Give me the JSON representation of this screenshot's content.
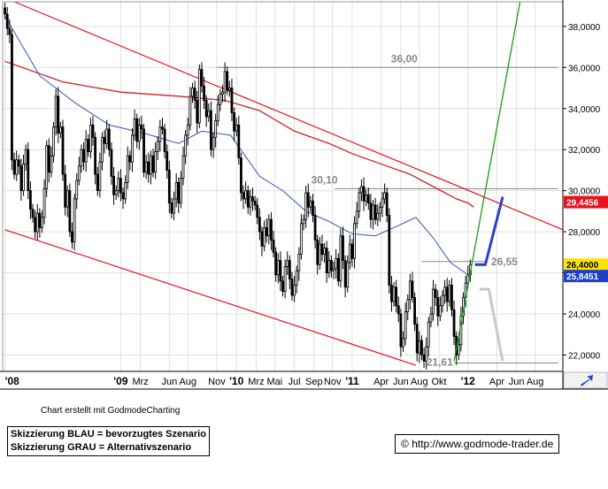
{
  "chart_data": {
    "type": "candlestick",
    "y_axis": {
      "ticks": [
        "38,0000",
        "36,0000",
        "34,0000",
        "32,0000",
        "30,0000",
        "28,0000",
        "26,0000",
        "24,0000",
        "22,0000"
      ],
      "tick_values": [
        38,
        36,
        34,
        32,
        30,
        28,
        26,
        24,
        22
      ],
      "range": [
        21.2,
        39.2
      ],
      "side": "right"
    },
    "x_axis": {
      "labels": [
        "'08",
        "'09",
        "Mrz",
        "Jun",
        "Aug",
        "Nov",
        "'10",
        "Mrz",
        "Mai",
        "Jul",
        "Sep",
        "Nov",
        "'11",
        "Apr",
        "Jun",
        "Aug",
        "Okt",
        "'12",
        "Apr",
        "Jun",
        "Aug"
      ],
      "label_dates": [
        2008.0,
        2009.0,
        2009.17,
        2009.42,
        2009.58,
        2009.83,
        2010.0,
        2010.17,
        2010.33,
        2010.5,
        2010.67,
        2010.83,
        2011.0,
        2011.25,
        2011.42,
        2011.58,
        2011.75,
        2012.0,
        2012.25,
        2012.42,
        2012.58
      ],
      "range": [
        2007.98,
        2012.82
      ]
    },
    "price_markers": [
      {
        "label": "29,4456",
        "value": 29.4456,
        "color": "#e8121b"
      },
      {
        "label": "26,4000",
        "value": 26.4,
        "color": "#ffe400"
      },
      {
        "label": "25,8451",
        "value": 25.8451,
        "color": "#1e3fc8"
      }
    ],
    "annotations": [
      {
        "text": "36,00",
        "level": 36.0,
        "from": 2009.83,
        "to": 2012.78
      },
      {
        "text": "30,10",
        "level": 30.1,
        "from": 2010.85,
        "to": 2012.78
      },
      {
        "text": "26,55",
        "level": 26.55,
        "from": 2011.6,
        "to": 2012.15
      },
      {
        "text": "21,61",
        "level": 21.61,
        "from": 2011.88,
        "to": 2012.78
      }
    ],
    "trend_channel": {
      "upper": [
        [
          2008.08,
          39.2
        ],
        [
          2012.82,
          28.1
        ]
      ],
      "lower": [
        [
          2008.0,
          28.1
        ],
        [
          2011.55,
          21.5
        ]
      ]
    },
    "support_line": [
      [
        2011.88,
        21.7
      ],
      [
        2012.45,
        39.2
      ]
    ],
    "sma_long": {
      "color": "#cc2222",
      "points": [
        [
          2008.0,
          36.3
        ],
        [
          2008.5,
          35.3
        ],
        [
          2009.0,
          34.8
        ],
        [
          2009.5,
          34.6
        ],
        [
          2009.9,
          34.4
        ],
        [
          2010.2,
          33.9
        ],
        [
          2010.5,
          32.9
        ],
        [
          2010.8,
          32.3
        ],
        [
          2011.0,
          31.8
        ],
        [
          2011.3,
          31.2
        ],
        [
          2011.5,
          30.8
        ],
        [
          2011.7,
          30.2
        ],
        [
          2011.9,
          29.6
        ],
        [
          2012.0,
          29.4
        ],
        [
          2012.05,
          29.2
        ]
      ]
    },
    "sma_short": {
      "color": "#3355bb",
      "points": [
        [
          2008.0,
          38.5
        ],
        [
          2008.3,
          35.6
        ],
        [
          2008.6,
          34.3
        ],
        [
          2008.9,
          33.2
        ],
        [
          2009.2,
          32.8
        ],
        [
          2009.5,
          32.3
        ],
        [
          2009.7,
          32.9
        ],
        [
          2009.95,
          32.7
        ],
        [
          2010.2,
          30.7
        ],
        [
          2010.4,
          30.0
        ],
        [
          2010.6,
          29.0
        ],
        [
          2010.8,
          28.5
        ],
        [
          2011.0,
          27.9
        ],
        [
          2011.2,
          27.8
        ],
        [
          2011.4,
          28.3
        ],
        [
          2011.55,
          28.7
        ],
        [
          2011.7,
          27.7
        ],
        [
          2011.85,
          26.5
        ],
        [
          2012.0,
          25.9
        ]
      ]
    },
    "scenario_blue": {
      "color": "#2c3fd0",
      "points": [
        [
          2012.06,
          26.4
        ],
        [
          2012.15,
          26.4
        ],
        [
          2012.3,
          29.7
        ]
      ]
    },
    "scenario_gray": {
      "color": "#c8c8c8",
      "points": [
        [
          2012.1,
          25.2
        ],
        [
          2012.18,
          25.2
        ],
        [
          2012.3,
          21.7
        ]
      ]
    },
    "candles": [
      [
        2008.0,
        38.6
      ],
      [
        2008.02,
        37.9
      ],
      [
        2008.04,
        37.6
      ],
      [
        2008.06,
        31.5
      ],
      [
        2008.08,
        30.8
      ],
      [
        2008.1,
        31.5
      ],
      [
        2008.12,
        31.2
      ],
      [
        2008.14,
        30.0
      ],
      [
        2008.16,
        31.3
      ],
      [
        2008.18,
        32.0
      ],
      [
        2008.2,
        30.0
      ],
      [
        2008.22,
        29.1
      ],
      [
        2008.24,
        28.7
      ],
      [
        2008.26,
        28.0
      ],
      [
        2008.28,
        28.9
      ],
      [
        2008.3,
        28.2
      ],
      [
        2008.32,
        28.7
      ],
      [
        2008.34,
        30.1
      ],
      [
        2008.36,
        32.2
      ],
      [
        2008.38,
        30.9
      ],
      [
        2008.4,
        31.7
      ],
      [
        2008.42,
        33.1
      ],
      [
        2008.44,
        34.6
      ],
      [
        2008.46,
        32.8
      ],
      [
        2008.48,
        33.1
      ],
      [
        2008.5,
        30.8
      ],
      [
        2008.52,
        29.2
      ],
      [
        2008.54,
        30.0
      ],
      [
        2008.56,
        28.0
      ],
      [
        2008.58,
        27.5
      ],
      [
        2008.6,
        29.6
      ],
      [
        2008.62,
        30.5
      ],
      [
        2008.64,
        31.2
      ],
      [
        2008.66,
        32.0
      ],
      [
        2008.68,
        31.4
      ],
      [
        2008.7,
        32.5
      ],
      [
        2008.72,
        31.9
      ],
      [
        2008.74,
        33.2
      ],
      [
        2008.76,
        32.6
      ],
      [
        2008.78,
        30.8
      ],
      [
        2008.8,
        30.0
      ],
      [
        2008.82,
        31.4
      ],
      [
        2008.84,
        32.6
      ],
      [
        2008.86,
        32.3
      ],
      [
        2008.88,
        33.0
      ],
      [
        2008.9,
        32.0
      ],
      [
        2008.92,
        30.7
      ],
      [
        2008.94,
        29.8
      ],
      [
        2008.96,
        30.0
      ],
      [
        2008.98,
        30.6
      ],
      [
        2009.0,
        29.9
      ],
      [
        2009.02,
        29.6
      ],
      [
        2009.04,
        30.4
      ],
      [
        2009.06,
        31.7
      ],
      [
        2009.08,
        31.4
      ],
      [
        2009.1,
        32.7
      ],
      [
        2009.12,
        33.5
      ],
      [
        2009.14,
        32.4
      ],
      [
        2009.16,
        33.2
      ],
      [
        2009.18,
        33.0
      ],
      [
        2009.2,
        30.9
      ],
      [
        2009.22,
        31.4
      ],
      [
        2009.24,
        30.8
      ],
      [
        2009.26,
        31.7
      ],
      [
        2009.28,
        30.9
      ],
      [
        2009.3,
        31.9
      ],
      [
        2009.32,
        32.4
      ],
      [
        2009.34,
        33.1
      ],
      [
        2009.36,
        33.0
      ],
      [
        2009.38,
        31.9
      ],
      [
        2009.4,
        31.0
      ],
      [
        2009.42,
        29.4
      ],
      [
        2009.44,
        28.9
      ],
      [
        2009.46,
        29.6
      ],
      [
        2009.48,
        30.4
      ],
      [
        2009.5,
        29.4
      ],
      [
        2009.52,
        30.6
      ],
      [
        2009.54,
        31.7
      ],
      [
        2009.56,
        32.7
      ],
      [
        2009.58,
        33.2
      ],
      [
        2009.6,
        34.6
      ],
      [
        2009.62,
        35.0
      ],
      [
        2009.64,
        34.4
      ],
      [
        2009.66,
        33.3
      ],
      [
        2009.68,
        35.9
      ],
      [
        2009.7,
        35.1
      ],
      [
        2009.72,
        34.4
      ],
      [
        2009.74,
        33.6
      ],
      [
        2009.76,
        33.9
      ],
      [
        2009.78,
        32.0
      ],
      [
        2009.8,
        32.6
      ],
      [
        2009.82,
        33.4
      ],
      [
        2009.84,
        34.2
      ],
      [
        2009.86,
        34.7
      ],
      [
        2009.88,
        34.8
      ],
      [
        2009.9,
        35.8
      ],
      [
        2009.92,
        34.9
      ],
      [
        2009.94,
        35.0
      ],
      [
        2009.96,
        33.8
      ],
      [
        2009.98,
        32.9
      ],
      [
        2010.0,
        33.2
      ],
      [
        2010.02,
        31.6
      ],
      [
        2010.04,
        29.9
      ],
      [
        2010.06,
        29.6
      ],
      [
        2010.08,
        30.0
      ],
      [
        2010.1,
        29.2
      ],
      [
        2010.12,
        29.7
      ],
      [
        2010.14,
        29.5
      ],
      [
        2010.16,
        29.3
      ],
      [
        2010.18,
        28.7
      ],
      [
        2010.2,
        28.0
      ],
      [
        2010.22,
        27.3
      ],
      [
        2010.24,
        28.2
      ],
      [
        2010.26,
        27.8
      ],
      [
        2010.28,
        28.6
      ],
      [
        2010.3,
        27.6
      ],
      [
        2010.32,
        27.0
      ],
      [
        2010.34,
        25.9
      ],
      [
        2010.36,
        26.6
      ],
      [
        2010.38,
        25.6
      ],
      [
        2010.4,
        25.1
      ],
      [
        2010.42,
        26.3
      ],
      [
        2010.44,
        26.6
      ],
      [
        2010.46,
        25.7
      ],
      [
        2010.48,
        24.9
      ],
      [
        2010.5,
        25.4
      ],
      [
        2010.52,
        26.1
      ],
      [
        2010.54,
        26.9
      ],
      [
        2010.56,
        28.4
      ],
      [
        2010.58,
        28.6
      ],
      [
        2010.6,
        29.9
      ],
      [
        2010.62,
        29.2
      ],
      [
        2010.64,
        29.5
      ],
      [
        2010.66,
        28.8
      ],
      [
        2010.68,
        27.6
      ],
      [
        2010.7,
        26.4
      ],
      [
        2010.72,
        27.4
      ],
      [
        2010.74,
        26.9
      ],
      [
        2010.76,
        27.2
      ],
      [
        2010.78,
        26.0
      ],
      [
        2010.8,
        26.6
      ],
      [
        2010.82,
        26.1
      ],
      [
        2010.84,
        26.2
      ],
      [
        2010.86,
        26.7
      ],
      [
        2010.88,
        25.6
      ],
      [
        2010.9,
        27.8
      ],
      [
        2010.92,
        26.6
      ],
      [
        2010.94,
        25.3
      ],
      [
        2010.96,
        26.5
      ],
      [
        2010.98,
        27.4
      ],
      [
        2011.0,
        26.7
      ],
      [
        2011.02,
        28.4
      ],
      [
        2011.04,
        29.0
      ],
      [
        2011.06,
        29.9
      ],
      [
        2011.08,
        30.2
      ],
      [
        2011.1,
        29.5
      ],
      [
        2011.12,
        29.8
      ],
      [
        2011.14,
        29.4
      ],
      [
        2011.16,
        28.6
      ],
      [
        2011.18,
        29.3
      ],
      [
        2011.2,
        28.6
      ],
      [
        2011.22,
        28.9
      ],
      [
        2011.24,
        29.2
      ],
      [
        2011.26,
        29.6
      ],
      [
        2011.28,
        29.9
      ],
      [
        2011.3,
        28.8
      ],
      [
        2011.32,
        25.4
      ],
      [
        2011.34,
        24.6
      ],
      [
        2011.36,
        25.3
      ],
      [
        2011.38,
        24.4
      ],
      [
        2011.4,
        24.0
      ],
      [
        2011.42,
        22.4
      ],
      [
        2011.44,
        22.8
      ],
      [
        2011.46,
        24.1
      ],
      [
        2011.48,
        24.7
      ],
      [
        2011.5,
        25.6
      ],
      [
        2011.52,
        24.8
      ],
      [
        2011.54,
        23.5
      ],
      [
        2011.56,
        22.1
      ],
      [
        2011.58,
        22.7
      ],
      [
        2011.6,
        22.0
      ],
      [
        2011.62,
        21.7
      ],
      [
        2011.64,
        22.4
      ],
      [
        2011.66,
        23.6
      ],
      [
        2011.68,
        24.0
      ],
      [
        2011.7,
        25.2
      ],
      [
        2011.72,
        24.8
      ],
      [
        2011.74,
        23.9
      ],
      [
        2011.76,
        24.4
      ],
      [
        2011.78,
        24.9
      ],
      [
        2011.8,
        25.3
      ],
      [
        2011.82,
        24.6
      ],
      [
        2011.84,
        25.4
      ],
      [
        2011.86,
        24.2
      ],
      [
        2011.88,
        22.9
      ],
      [
        2011.9,
        22.0
      ],
      [
        2011.92,
        22.5
      ],
      [
        2011.94,
        23.9
      ],
      [
        2011.96,
        24.8
      ],
      [
        2011.98,
        25.5
      ],
      [
        2012.0,
        25.9
      ],
      [
        2012.02,
        26.4
      ]
    ]
  },
  "footer": {
    "credit": "Chart erstellt mit GodmodeCharting",
    "legend_blue": "Skizzierung BLAU = bevorzugtes Szenario",
    "legend_gray": "Skizzierung GRAU = Alternativszenario",
    "copyright_symbol": "©",
    "url": "http://www.godmode-trader.de"
  },
  "colors": {
    "grid": "#e1e1e1",
    "candle_up": "#ffffff",
    "candle_down": "#000000",
    "channel": "#e8121b",
    "support": "#1a9a1a",
    "level_line": "#888888",
    "axis_bg": "#ffffff",
    "corner_icon": "#1e3fc8"
  },
  "icons": {
    "corner": "arrow-icon"
  }
}
